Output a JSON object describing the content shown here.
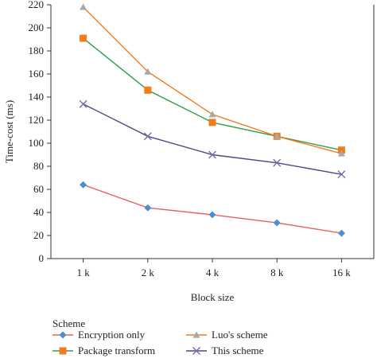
{
  "chart_data": {
    "type": "line",
    "categories": [
      "1 k",
      "2 k",
      "4 k",
      "8 k",
      "16 k"
    ],
    "xlabel": "Block size",
    "ylabel": "Time-cost (ms)",
    "ylim": [
      0,
      220
    ],
    "yticks": [
      0,
      20,
      40,
      60,
      80,
      100,
      120,
      140,
      160,
      180,
      200,
      220
    ],
    "grid": false,
    "legend_title": "Scheme",
    "legend_placement": "bottom",
    "series": [
      {
        "name": "Encryption only",
        "color": "#e8625c",
        "marker_color": "#4a90d0",
        "marker": "diamond",
        "values": [
          64,
          44,
          38,
          31,
          22
        ]
      },
      {
        "name": "Package transform",
        "color": "#2e9e4a",
        "marker_color": "#f07c1e",
        "marker": "square",
        "values": [
          191,
          146,
          118,
          106,
          94
        ]
      },
      {
        "name": "Luo's scheme",
        "color": "#f07c1e",
        "marker_color": "#a8a8a8",
        "marker": "triangle",
        "values": [
          218,
          162,
          125,
          106,
          91
        ]
      },
      {
        "name": "This scheme",
        "color": "#4a4a8a",
        "marker_color": "#7a6aaa",
        "marker": "x",
        "values": [
          134,
          106,
          90,
          83,
          73
        ]
      }
    ]
  }
}
